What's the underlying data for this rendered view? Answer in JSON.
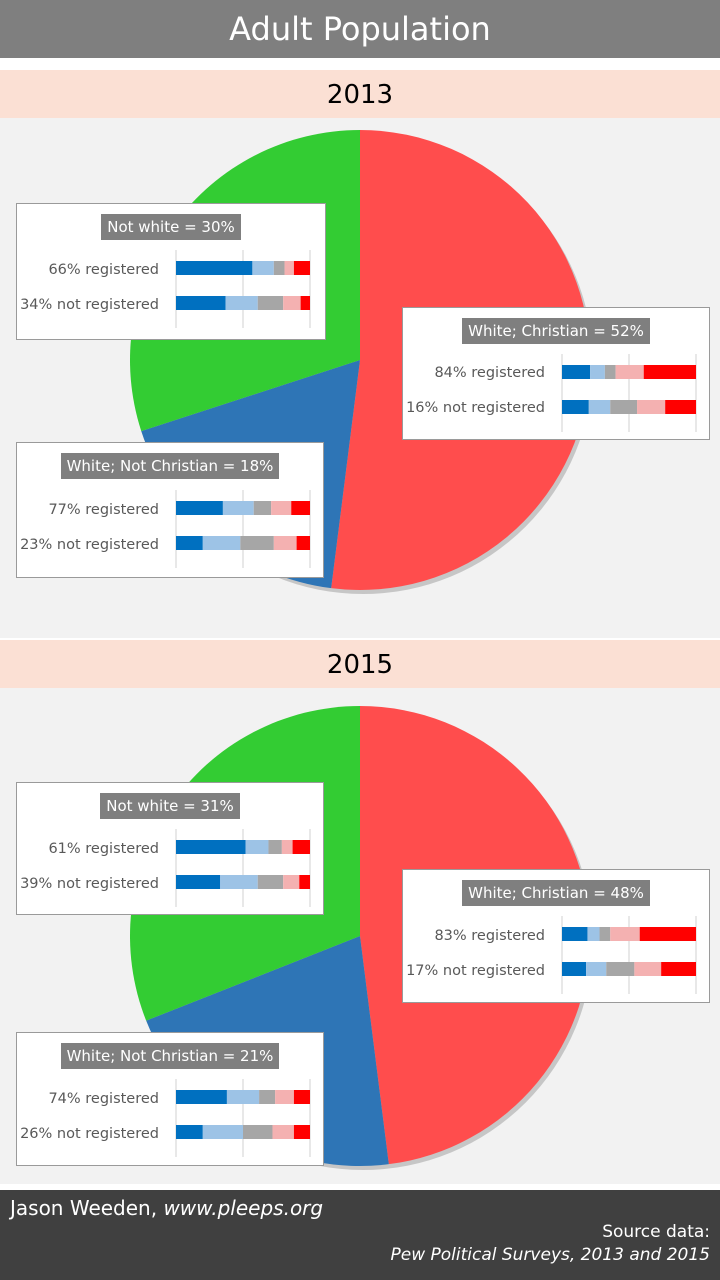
{
  "title": "Adult Population",
  "footer": {
    "author": "Jason Weeden, ",
    "site": "www.pleeps.org",
    "source_label": "Source data:",
    "source": "Pew Political Surveys, 2013 and 2015"
  },
  "colors": {
    "green": "#33cc33",
    "blue": "#2e75b6",
    "red": "#ff4d4d",
    "bar_segments": [
      "#0070c0",
      "#9dc3e6",
      "#a6a6a6",
      "#f4b1b1",
      "#ff0000"
    ]
  },
  "chart_data": [
    {
      "type": "pie",
      "title": "2013",
      "slices": [
        {
          "label": "White; Christian",
          "value": 52,
          "color": "#ff4d4d"
        },
        {
          "label": "White; Not Christian",
          "value": 18,
          "color": "#2e75b6"
        },
        {
          "label": "Not white",
          "value": 30,
          "color": "#33cc33"
        }
      ],
      "callouts": [
        {
          "title": "Not white = 30%",
          "rows": [
            {
              "label": "66% registered",
              "segments": [
                0.57,
                0.16,
                0.08,
                0.07,
                0.12
              ]
            },
            {
              "label": "34% not registered",
              "segments": [
                0.37,
                0.24,
                0.19,
                0.13,
                0.07
              ]
            }
          ]
        },
        {
          "title": "White; Christian = 52%",
          "rows": [
            {
              "label": "84% registered",
              "segments": [
                0.21,
                0.11,
                0.08,
                0.21,
                0.39
              ]
            },
            {
              "label": "16% not registered",
              "segments": [
                0.2,
                0.16,
                0.2,
                0.21,
                0.23
              ]
            }
          ]
        },
        {
          "title": "White; Not Christian = 18%",
          "rows": [
            {
              "label": "77% registered",
              "segments": [
                0.35,
                0.23,
                0.13,
                0.15,
                0.14
              ]
            },
            {
              "label": "23% not registered",
              "segments": [
                0.2,
                0.28,
                0.25,
                0.17,
                0.1
              ]
            }
          ]
        }
      ]
    },
    {
      "type": "pie",
      "title": "2015",
      "slices": [
        {
          "label": "White; Christian",
          "value": 48,
          "color": "#ff4d4d"
        },
        {
          "label": "White; Not Christian",
          "value": 21,
          "color": "#2e75b6"
        },
        {
          "label": "Not white",
          "value": 31,
          "color": "#33cc33"
        }
      ],
      "callouts": [
        {
          "title": "Not white = 31%",
          "rows": [
            {
              "label": "61% registered",
              "segments": [
                0.52,
                0.17,
                0.1,
                0.08,
                0.13
              ]
            },
            {
              "label": "39% not registered",
              "segments": [
                0.33,
                0.28,
                0.19,
                0.12,
                0.08
              ]
            }
          ]
        },
        {
          "title": "White; Christian = 48%",
          "rows": [
            {
              "label": "83% registered",
              "segments": [
                0.19,
                0.09,
                0.08,
                0.22,
                0.42
              ]
            },
            {
              "label": "17% not registered",
              "segments": [
                0.18,
                0.15,
                0.21,
                0.2,
                0.26
              ]
            }
          ]
        },
        {
          "title": "White; Not Christian = 21%",
          "rows": [
            {
              "label": "74% registered",
              "segments": [
                0.38,
                0.24,
                0.12,
                0.14,
                0.12
              ]
            },
            {
              "label": "26% not registered",
              "segments": [
                0.2,
                0.3,
                0.22,
                0.16,
                0.12
              ]
            }
          ]
        }
      ]
    }
  ]
}
